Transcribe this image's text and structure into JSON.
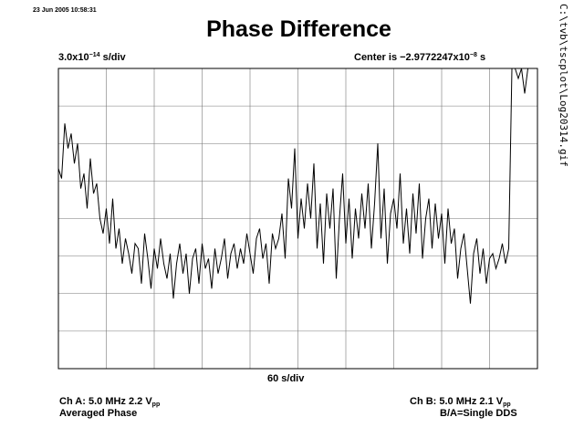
{
  "header": {
    "timestamp": "23 Jun 2005 10:58:31",
    "title": "Phase Difference",
    "y_scale_mantissa": "3.0x10",
    "y_scale_exponent": "−14",
    "y_scale_unit": " s/div",
    "center_prefix": "Center is −2.9772247x10",
    "center_exponent": "−8",
    "center_unit": " s",
    "file_path": "C:\\tvb\\tscplot\\Log20314.gif"
  },
  "footer": {
    "x_scale": "60 s/div",
    "channel_a_prefix": "Ch A: 5.0 MHz 2.2 V",
    "channel_a_sub": "pp",
    "channel_a_mode": "Averaged Phase",
    "channel_b_prefix": "Ch B: 5.0 MHz 2.1 V",
    "channel_b_sub": "pp",
    "channel_b_mode": "B/A=Single DDS"
  },
  "chart_data": {
    "type": "line",
    "title": "Phase Difference",
    "xlabel": "60 s/div",
    "ylabel": "3.0x10^-14 s/div",
    "xlim": [
      0,
      600
    ],
    "ylim": [
      -15,
      15
    ],
    "grid": true,
    "x_divisions": 10,
    "y_divisions": 8,
    "series": [
      {
        "values": [
          [
            0,
            5.0
          ],
          [
            4,
            4.0
          ],
          [
            8,
            9.5
          ],
          [
            12,
            7.0
          ],
          [
            16,
            8.5
          ],
          [
            20,
            5.5
          ],
          [
            24,
            7.5
          ],
          [
            28,
            3.0
          ],
          [
            32,
            4.5
          ],
          [
            36,
            1.0
          ],
          [
            40,
            6.0
          ],
          [
            44,
            2.5
          ],
          [
            48,
            3.5
          ],
          [
            52,
            0.0
          ],
          [
            56,
            -1.5
          ],
          [
            60,
            1.0
          ],
          [
            64,
            -2.5
          ],
          [
            68,
            2.0
          ],
          [
            72,
            -3.0
          ],
          [
            76,
            -1.0
          ],
          [
            80,
            -4.5
          ],
          [
            84,
            -2.0
          ],
          [
            88,
            -3.5
          ],
          [
            92,
            -5.5
          ],
          [
            96,
            -2.5
          ],
          [
            100,
            -3.0
          ],
          [
            104,
            -6.5
          ],
          [
            108,
            -1.5
          ],
          [
            112,
            -4.0
          ],
          [
            116,
            -7.0
          ],
          [
            120,
            -3.0
          ],
          [
            124,
            -5.0
          ],
          [
            128,
            -2.0
          ],
          [
            132,
            -4.5
          ],
          [
            136,
            -6.0
          ],
          [
            140,
            -3.5
          ],
          [
            144,
            -8.0
          ],
          [
            148,
            -4.5
          ],
          [
            152,
            -2.5
          ],
          [
            156,
            -5.5
          ],
          [
            160,
            -3.5
          ],
          [
            164,
            -7.5
          ],
          [
            168,
            -4.0
          ],
          [
            172,
            -3.0
          ],
          [
            176,
            -6.5
          ],
          [
            180,
            -2.5
          ],
          [
            184,
            -5.0
          ],
          [
            188,
            -4.0
          ],
          [
            192,
            -7.0
          ],
          [
            196,
            -3.0
          ],
          [
            200,
            -5.5
          ],
          [
            204,
            -4.0
          ],
          [
            208,
            -2.0
          ],
          [
            212,
            -6.0
          ],
          [
            216,
            -3.5
          ],
          [
            220,
            -2.5
          ],
          [
            224,
            -5.0
          ],
          [
            228,
            -3.0
          ],
          [
            232,
            -4.5
          ],
          [
            236,
            -1.5
          ],
          [
            240,
            -3.5
          ],
          [
            244,
            -5.5
          ],
          [
            248,
            -2.0
          ],
          [
            252,
            -1.0
          ],
          [
            256,
            -4.0
          ],
          [
            260,
            -2.5
          ],
          [
            264,
            -6.5
          ],
          [
            268,
            -1.5
          ],
          [
            272,
            -3.0
          ],
          [
            276,
            -2.0
          ],
          [
            280,
            0.5
          ],
          [
            284,
            -4.0
          ],
          [
            288,
            4.0
          ],
          [
            292,
            1.0
          ],
          [
            296,
            7.0
          ],
          [
            300,
            -2.0
          ],
          [
            304,
            2.0
          ],
          [
            308,
            -1.0
          ],
          [
            312,
            3.5
          ],
          [
            316,
            0.0
          ],
          [
            320,
            5.5
          ],
          [
            324,
            -3.0
          ],
          [
            328,
            1.5
          ],
          [
            332,
            -4.5
          ],
          [
            336,
            2.5
          ],
          [
            340,
            -1.0
          ],
          [
            344,
            3.0
          ],
          [
            348,
            -6.0
          ],
          [
            352,
            0.0
          ],
          [
            356,
            4.5
          ],
          [
            360,
            -2.5
          ],
          [
            364,
            2.0
          ],
          [
            368,
            -4.0
          ],
          [
            372,
            1.0
          ],
          [
            376,
            -2.0
          ],
          [
            380,
            2.5
          ],
          [
            384,
            -1.0
          ],
          [
            388,
            3.5
          ],
          [
            392,
            -3.0
          ],
          [
            396,
            1.5
          ],
          [
            400,
            7.5
          ],
          [
            404,
            -2.0
          ],
          [
            408,
            3.0
          ],
          [
            412,
            -4.5
          ],
          [
            416,
            0.5
          ],
          [
            420,
            2.0
          ],
          [
            424,
            -1.0
          ],
          [
            428,
            4.5
          ],
          [
            432,
            -2.5
          ],
          [
            436,
            1.0
          ],
          [
            440,
            -3.5
          ],
          [
            444,
            2.5
          ],
          [
            448,
            -1.5
          ],
          [
            452,
            3.5
          ],
          [
            456,
            -4.0
          ],
          [
            460,
            0.0
          ],
          [
            464,
            2.0
          ],
          [
            468,
            -3.0
          ],
          [
            472,
            1.5
          ],
          [
            476,
            -2.0
          ],
          [
            480,
            0.5
          ],
          [
            484,
            -4.5
          ],
          [
            488,
            1.0
          ],
          [
            492,
            -2.5
          ],
          [
            496,
            -1.0
          ],
          [
            500,
            -6.0
          ],
          [
            504,
            -3.0
          ],
          [
            508,
            -1.5
          ],
          [
            512,
            -5.0
          ],
          [
            516,
            -8.5
          ],
          [
            520,
            -3.5
          ],
          [
            524,
            -2.0
          ],
          [
            528,
            -5.5
          ],
          [
            532,
            -3.0
          ],
          [
            536,
            -6.5
          ],
          [
            540,
            -4.0
          ],
          [
            544,
            -3.5
          ],
          [
            548,
            -5.0
          ],
          [
            552,
            -4.0
          ],
          [
            556,
            -2.5
          ],
          [
            560,
            -4.5
          ],
          [
            564,
            -3.0
          ],
          [
            568,
            15.0
          ],
          [
            572,
            15.0
          ],
          [
            576,
            14.0
          ],
          [
            580,
            15.0
          ],
          [
            584,
            12.5
          ],
          [
            588,
            15.0
          ]
        ]
      }
    ]
  }
}
